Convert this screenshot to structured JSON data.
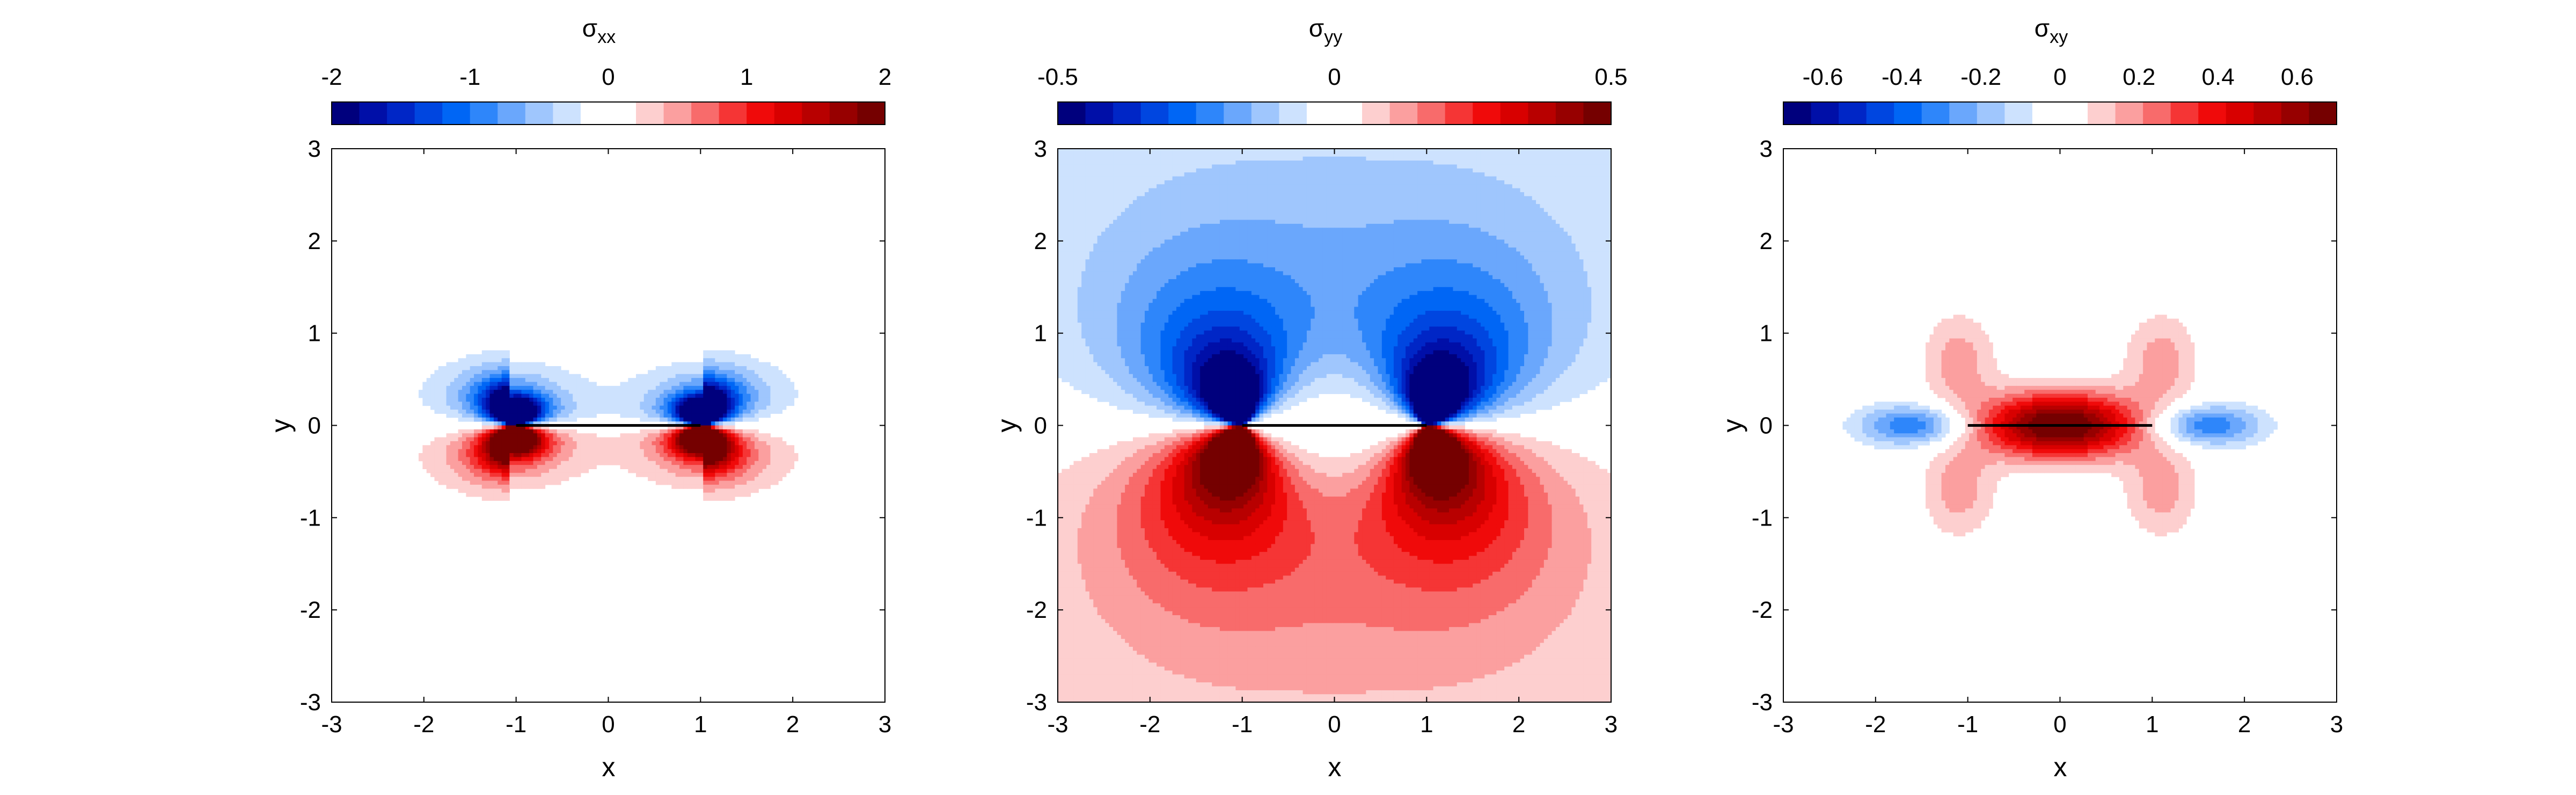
{
  "chart_data": [
    {
      "type": "heatmap",
      "title": "σxx",
      "title_symbol": "σ",
      "title_sub": "xx",
      "xlabel": "x",
      "ylabel": "y",
      "xlim": [
        -3,
        3
      ],
      "ylim": [
        -3,
        3
      ],
      "xticks": [
        -3,
        -2,
        -1,
        0,
        1,
        2,
        3
      ],
      "yticks": [
        -3,
        -2,
        -1,
        0,
        1,
        2,
        3
      ],
      "crack": {
        "x": [
          -1,
          1
        ],
        "y": 0
      },
      "colorbar": {
        "placement": "top",
        "range": [
          -2,
          2
        ],
        "ticks": [
          -2,
          -1,
          0,
          1,
          2
        ],
        "tick_labels": [
          "-2",
          "-1",
          "0",
          "1",
          "2"
        ],
        "levels": 20
      },
      "field": "sxx",
      "scale": 2
    },
    {
      "type": "heatmap",
      "title": "σyy",
      "title_symbol": "σ",
      "title_sub": "yy",
      "xlabel": "x",
      "ylabel": "y",
      "xlim": [
        -3,
        3
      ],
      "ylim": [
        -3,
        3
      ],
      "xticks": [
        -3,
        -2,
        -1,
        0,
        1,
        2,
        3
      ],
      "yticks": [
        -3,
        -2,
        -1,
        0,
        1,
        2,
        3
      ],
      "crack": {
        "x": [
          -1,
          1
        ],
        "y": 0
      },
      "colorbar": {
        "placement": "top",
        "range": [
          -0.5,
          0.5
        ],
        "ticks": [
          -0.5,
          0,
          0.5
        ],
        "tick_labels": [
          "-0.5",
          "0",
          "0.5"
        ],
        "levels": 20
      },
      "field": "syy",
      "scale": 0.5
    },
    {
      "type": "heatmap",
      "title": "σxy",
      "title_symbol": "σ",
      "title_sub": "xy",
      "xlabel": "x",
      "ylabel": "y",
      "xlim": [
        -3,
        3
      ],
      "ylim": [
        -3,
        3
      ],
      "xticks": [
        -3,
        -2,
        -1,
        0,
        1,
        2,
        3
      ],
      "yticks": [
        -3,
        -2,
        -1,
        0,
        1,
        2,
        3
      ],
      "crack": {
        "x": [
          -1,
          1
        ],
        "y": 0
      },
      "colorbar": {
        "placement": "top",
        "range": [
          -0.7,
          0.7
        ],
        "ticks": [
          -0.6,
          -0.4,
          -0.2,
          0,
          0.2,
          0.4,
          0.6
        ],
        "tick_labels": [
          "-0.6",
          "-0.4",
          "-0.2",
          "0",
          "0.2",
          "0.4",
          "0.6"
        ],
        "levels": 20
      },
      "field": "sxy",
      "scale": 0.7
    }
  ],
  "colormap": [
    "#00007d",
    "#000fa8",
    "#0026c6",
    "#0046e0",
    "#0066f5",
    "#2e86fa",
    "#6aa7fc",
    "#9fc6fd",
    "#cde2fe",
    "#ffffff",
    "#ffffff",
    "#fdcfcf",
    "#fb9f9f",
    "#f86b6b",
    "#f53535",
    "#f00a0a",
    "#d80000",
    "#b80000",
    "#970000",
    "#750000"
  ]
}
